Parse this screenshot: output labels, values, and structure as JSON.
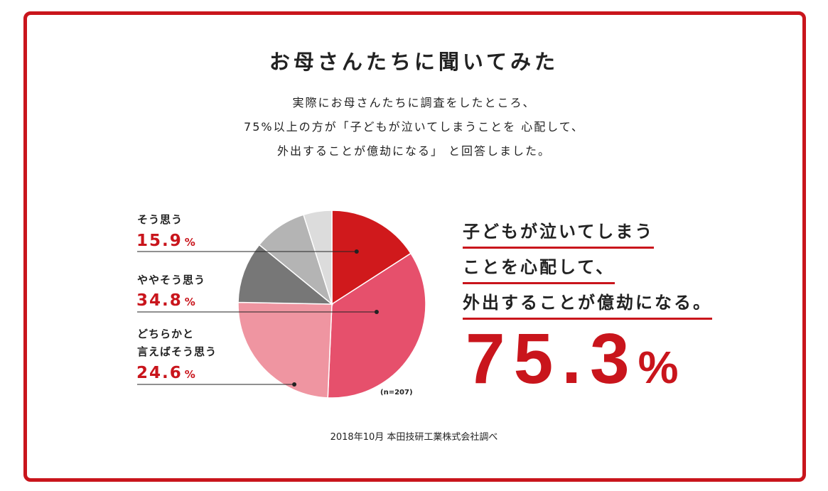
{
  "title": "お母さんたちに聞いてみた",
  "intro": [
    "実際にお母さんたちに調査をしたところ、",
    "75%以上の方が「子どもが泣いてしまうことを 心配して、",
    "外出することが億劫になる」 と回答しました。"
  ],
  "chart_data": {
    "type": "pie",
    "n_label": "(n=207)",
    "slices": [
      {
        "label": "そう思う",
        "value": 15.9,
        "color": "#d0191c"
      },
      {
        "label": "ややそう思う",
        "value": 34.8,
        "color": "#e6506c"
      },
      {
        "label": "どちらかと言えばそう思う",
        "value": 24.6,
        "color": "#ef95a1"
      },
      {
        "label": "",
        "value": 10.6,
        "color": "#777777"
      },
      {
        "label": "",
        "value": 9.2,
        "color": "#b4b4b4"
      },
      {
        "label": "",
        "value": 4.9,
        "color": "#dcdcdc"
      }
    ],
    "unit": "%"
  },
  "legend": [
    {
      "label_lines": [
        "そう思う"
      ],
      "pct": "15.9"
    },
    {
      "label_lines": [
        "ややそう思う"
      ],
      "pct": "34.8"
    },
    {
      "label_lines": [
        "どちらかと",
        "言えばそう思う"
      ],
      "pct": "24.6"
    }
  ],
  "pct_unit": "%",
  "headline": [
    "子どもが泣いてしまう",
    "ことを心配して、",
    "外出することが億劫になる。"
  ],
  "big_value": "75.3",
  "big_unit": "%",
  "source": "2018年10月 本田技研工業株式会社調べ",
  "colors": {
    "accent": "#c9151c"
  }
}
